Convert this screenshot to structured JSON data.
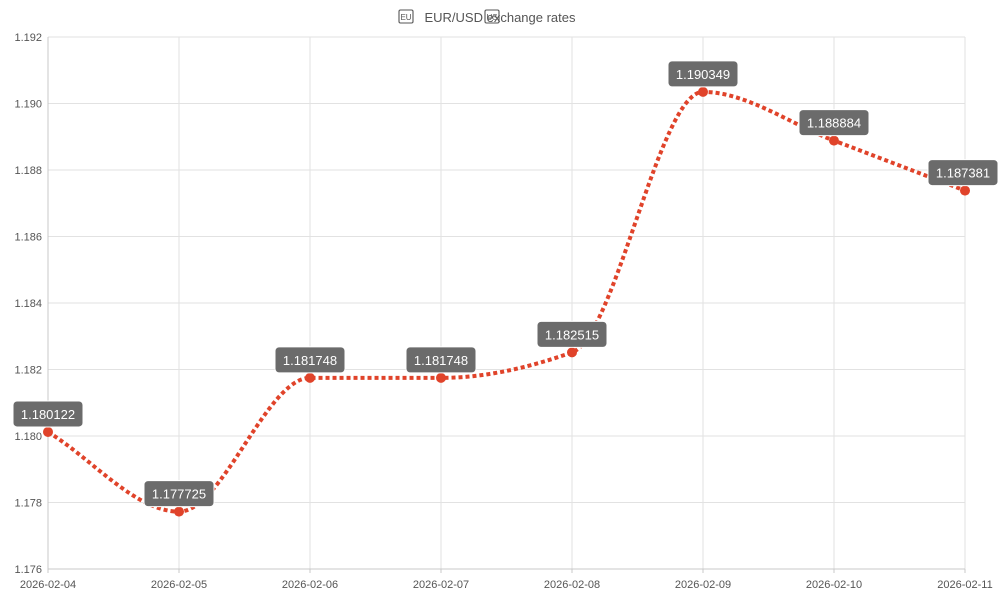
{
  "chart_data": {
    "type": "line",
    "title": "EUR/USD exchange rates",
    "title_icons": [
      "eu-flag-icon",
      "us-flag-icon"
    ],
    "xlabel": "",
    "ylabel": "",
    "categories": [
      "2026-02-04",
      "2026-02-05",
      "2026-02-06",
      "2026-02-07",
      "2026-02-08",
      "2026-02-09",
      "2026-02-10",
      "2026-02-11"
    ],
    "series": [
      {
        "values": [
          1.180122,
          1.177725,
          1.181748,
          1.181748,
          1.182515,
          1.190349,
          1.188884,
          1.187381
        ],
        "labels": [
          "1.180122",
          "1.177725",
          "1.181748",
          "1.181748",
          "1.182515",
          "1.190349",
          "1.188884",
          "1.187381"
        ],
        "color": "#e0432a",
        "line_style": "dotted",
        "smooth": true
      }
    ],
    "ylim": [
      1.176,
      1.192
    ],
    "yticks": [
      "1.176",
      "1.178",
      "1.180",
      "1.182",
      "1.184",
      "1.186",
      "1.188",
      "1.190",
      "1.192"
    ],
    "grid": true,
    "legend": "none",
    "colors": {
      "grid": "#e2e2e2",
      "axis": "#c8c8c8",
      "label_box": "#6b6b6b",
      "label_text": "#ffffff"
    }
  }
}
